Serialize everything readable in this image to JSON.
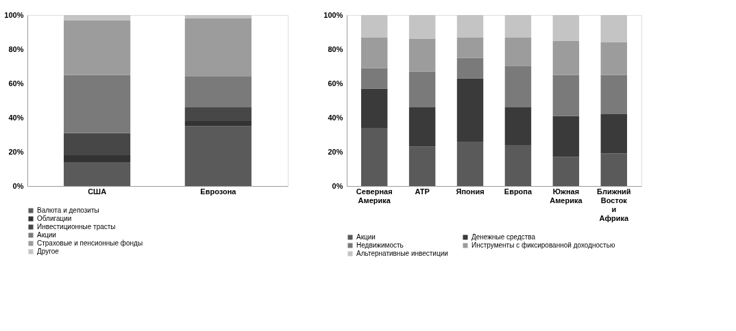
{
  "chart_data": [
    {
      "type": "bar",
      "stacked": true,
      "categories": [
        "США",
        "Еврозона"
      ],
      "legend": "bottom",
      "grid": false,
      "ylim": [
        0,
        100
      ],
      "yticks": [
        {
          "value": 0,
          "label": "0%"
        },
        {
          "value": 20,
          "label": "20%"
        },
        {
          "value": 40,
          "label": "40%"
        },
        {
          "value": 60,
          "label": "60%"
        },
        {
          "value": 80,
          "label": "80%"
        },
        {
          "value": 100,
          "label": "100%"
        }
      ],
      "series": [
        {
          "name": "Валюта и депозиты",
          "color": "#5a5a5a",
          "values": [
            14,
            35
          ]
        },
        {
          "name": "Облигации",
          "color": "#333333",
          "values": [
            4,
            3
          ]
        },
        {
          "name": "Инвестиционные трасты",
          "color": "#474747",
          "values": [
            13,
            8
          ]
        },
        {
          "name": "Акции",
          "color": "#7a7a7a",
          "values": [
            34,
            18
          ]
        },
        {
          "name": "Страховые и пенсионные фонды",
          "color": "#9c9c9c",
          "values": [
            32,
            34
          ]
        },
        {
          "name": "Другое",
          "color": "#c4c4c4",
          "values": [
            3,
            2
          ]
        }
      ]
    },
    {
      "type": "bar",
      "stacked": true,
      "categories": [
        "Северная Америка",
        "АТР",
        "Япония",
        "Европа",
        "Южная Америка",
        "Ближний Восток и Африка"
      ],
      "legend": "bottom",
      "grid": false,
      "ylim": [
        0,
        100
      ],
      "yticks": [
        {
          "value": 0,
          "label": "0%"
        },
        {
          "value": 20,
          "label": "20%"
        },
        {
          "value": 40,
          "label": "40%"
        },
        {
          "value": 60,
          "label": "60%"
        },
        {
          "value": 80,
          "label": "80%"
        },
        {
          "value": 100,
          "label": "100%"
        }
      ],
      "series": [
        {
          "name": "Акции",
          "color": "#5a5a5a",
          "values": [
            34,
            23,
            26,
            24,
            17,
            19
          ]
        },
        {
          "name": "Денежные средства",
          "color": "#3a3a3a",
          "values": [
            23,
            23,
            37,
            22,
            24,
            23
          ]
        },
        {
          "name": "Недвижимость",
          "color": "#7a7a7a",
          "values": [
            12,
            21,
            12,
            24,
            24,
            23
          ]
        },
        {
          "name": "Инструменты с фиксированной доходностью",
          "color": "#9c9c9c",
          "values": [
            18,
            19,
            12,
            17,
            20,
            19
          ]
        },
        {
          "name": "Альтернативные инвестиции",
          "color": "#c4c4c4",
          "values": [
            13,
            14,
            13,
            13,
            15,
            16
          ]
        }
      ]
    }
  ]
}
